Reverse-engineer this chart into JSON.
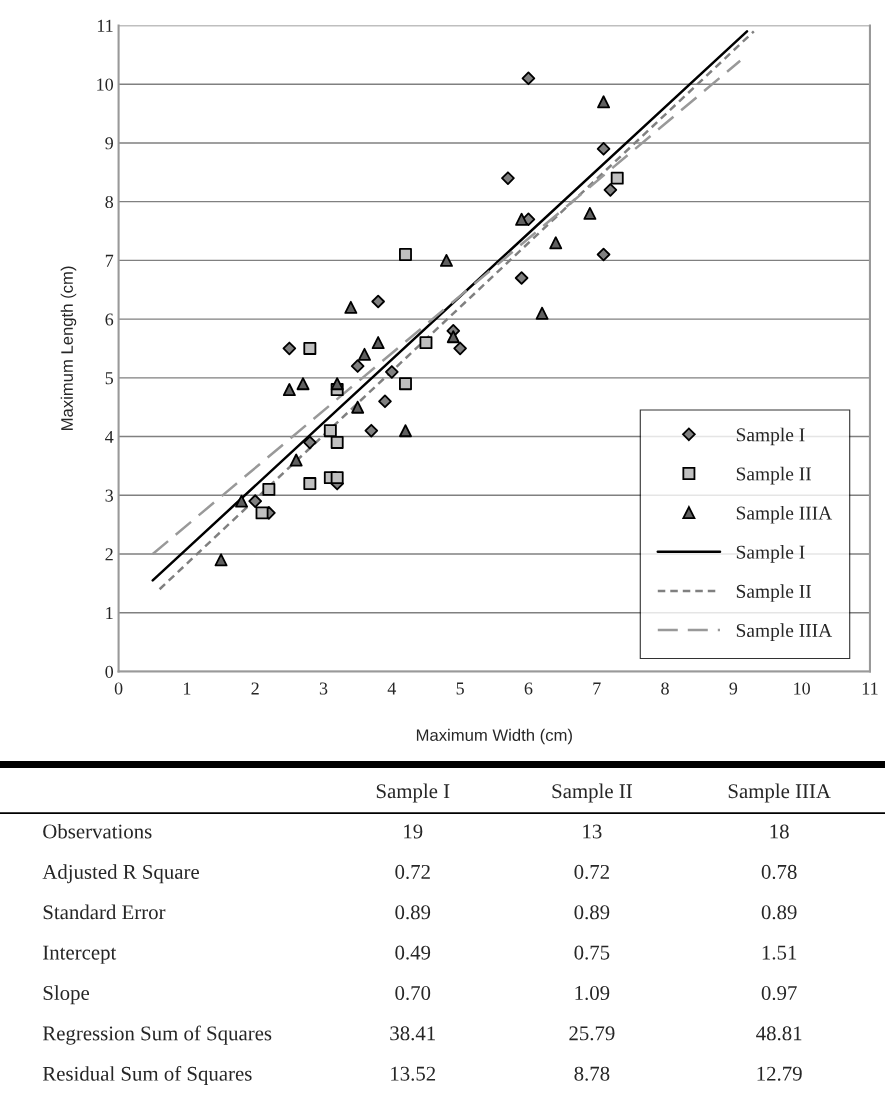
{
  "chart_data": [
    {
      "type": "scatter",
      "xlabel": "Maximum Width (cm)",
      "ylabel": "Maximum Length (cm)",
      "xlim": [
        0,
        11
      ],
      "ylim": [
        0,
        11
      ],
      "xticks": [
        0,
        1,
        2,
        3,
        4,
        5,
        6,
        7,
        8,
        9,
        10,
        11
      ],
      "yticks": [
        0,
        1,
        2,
        3,
        4,
        5,
        6,
        7,
        8,
        9,
        10,
        11
      ],
      "grid": "y",
      "legend": "bottom right",
      "series": [
        {
          "name": "Sample I",
          "type": "scatter",
          "marker": "diamond",
          "color": "#808080",
          "x": [
            6.0,
            5.7,
            7.1,
            7.2,
            6.0,
            5.9,
            7.1,
            3.8,
            2.5,
            4.9,
            5.0,
            3.5,
            4.0,
            3.9,
            3.7,
            2.8,
            3.2,
            2.0,
            2.2
          ],
          "values": [
            10.1,
            8.4,
            8.9,
            8.2,
            7.7,
            6.7,
            7.1,
            6.3,
            5.5,
            5.8,
            5.5,
            5.2,
            5.1,
            4.6,
            4.1,
            3.9,
            3.2,
            2.9,
            2.7
          ]
        },
        {
          "name": "Sample II",
          "type": "scatter",
          "marker": "square",
          "color": "#c0c0c0",
          "x": [
            4.2,
            2.8,
            4.5,
            7.3,
            4.2,
            3.2,
            3.1,
            3.2,
            2.8,
            3.1,
            3.2,
            2.2,
            2.1
          ],
          "values": [
            7.1,
            5.5,
            5.6,
            8.4,
            4.9,
            4.8,
            4.1,
            3.9,
            3.2,
            3.3,
            3.3,
            3.1,
            2.7
          ]
        },
        {
          "name": "Sample IIIA",
          "type": "scatter",
          "marker": "triangle",
          "color": "#606060",
          "x": [
            7.1,
            5.9,
            6.9,
            6.4,
            4.8,
            6.2,
            3.4,
            3.8,
            3.6,
            4.9,
            2.5,
            2.7,
            3.2,
            3.5,
            4.2,
            2.6,
            1.8,
            1.5
          ],
          "values": [
            9.7,
            7.7,
            7.8,
            7.3,
            7.0,
            6.1,
            6.2,
            5.6,
            5.4,
            5.7,
            4.8,
            4.9,
            4.9,
            4.5,
            4.1,
            3.6,
            2.9,
            1.9
          ]
        },
        {
          "name": "Sample I",
          "type": "line",
          "line_style": "solid",
          "color": "#000000",
          "x": [
            0.5,
            9.2
          ],
          "values": [
            1.55,
            10.9
          ]
        },
        {
          "name": "Sample II",
          "type": "line",
          "line_style": "dotted",
          "color": "#808080",
          "x": [
            0.6,
            9.3
          ],
          "values": [
            1.4,
            10.9
          ]
        },
        {
          "name": "Sample IIIA",
          "type": "line",
          "line_style": "dashed",
          "color": "#999999",
          "x": [
            0.5,
            9.1
          ],
          "values": [
            2.0,
            10.4
          ]
        }
      ]
    },
    {
      "type": "other",
      "categories": [
        "Sample I",
        "Sample II",
        "Sample IIIA"
      ],
      "y_categories": [
        "Observations",
        "Adjusted R Square",
        "Standard Error",
        "Intercept",
        "Slope",
        "Regression Sum of Squares",
        "Residual Sum of Squares"
      ],
      "cell_labels": [
        [
          "19",
          "13",
          "18"
        ],
        [
          "0.72",
          "0.72",
          "0.78"
        ],
        [
          "0.89",
          "0.89",
          "0.89"
        ],
        [
          "0.49",
          "0.75",
          "1.51"
        ],
        [
          "0.70",
          "1.09",
          "0.97"
        ],
        [
          "38.41",
          "25.79",
          "48.81"
        ],
        [
          "13.52",
          "8.78",
          "12.79"
        ]
      ]
    }
  ]
}
